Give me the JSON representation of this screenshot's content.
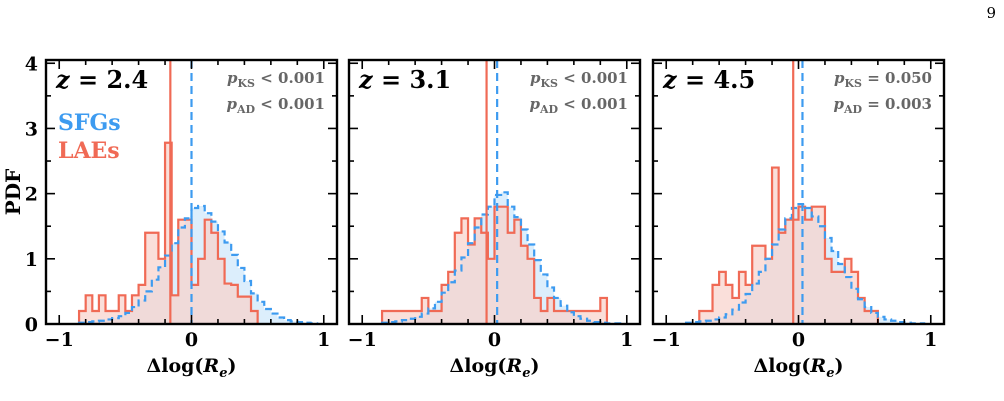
{
  "page": {
    "number": "9"
  },
  "legend": {
    "series": [
      "SFGs",
      "LAEs"
    ]
  },
  "colors": {
    "sfg": "#3d9bf0",
    "lae": "#f06a55",
    "sfg_fill": "#d6ebfb",
    "lae_fill": "#f8d1cb",
    "overlap_fill": "#e5c9d0"
  },
  "chart_data": [
    {
      "type": "histogram",
      "label": "z = 2.4",
      "label_prefix": "z",
      "label_value": "2.4",
      "ylabel": "PDF",
      "xlabel": "Δlog(R_e)",
      "xlim": [
        -1.1,
        1.1
      ],
      "ylim": [
        0,
        4.05
      ],
      "xticks": [
        "−1",
        "0",
        "1"
      ],
      "yticks": [
        "0",
        "1",
        "2",
        "3",
        "4"
      ],
      "stats": {
        "p_ks": "< 0.001",
        "p_ad": "< 0.001"
      },
      "sfg_median": 0.0,
      "lae_median": -0.16,
      "sfg_hist": {
        "edges": [
          -0.85,
          -0.8,
          -0.75,
          -0.7,
          -0.65,
          -0.6,
          -0.55,
          -0.5,
          -0.45,
          -0.4,
          -0.35,
          -0.3,
          -0.25,
          -0.2,
          -0.15,
          -0.1,
          -0.05,
          0.0,
          0.05,
          0.1,
          0.15,
          0.2,
          0.25,
          0.3,
          0.35,
          0.4,
          0.45,
          0.5,
          0.55,
          0.6,
          0.65,
          0.7,
          0.75,
          0.8,
          0.85,
          0.9,
          0.95
        ],
        "values": [
          0.02,
          0.03,
          0.04,
          0.05,
          0.07,
          0.09,
          0.12,
          0.17,
          0.26,
          0.36,
          0.5,
          0.68,
          0.87,
          1.05,
          1.24,
          1.48,
          1.62,
          1.78,
          1.81,
          1.7,
          1.57,
          1.42,
          1.25,
          1.06,
          0.86,
          0.66,
          0.47,
          0.34,
          0.23,
          0.16,
          0.1,
          0.06,
          0.04,
          0.03,
          0.02,
          0.01
        ]
      },
      "lae_hist": {
        "edges": [
          -0.85,
          -0.8,
          -0.75,
          -0.7,
          -0.65,
          -0.6,
          -0.55,
          -0.5,
          -0.45,
          -0.4,
          -0.35,
          -0.3,
          -0.25,
          -0.2,
          -0.15,
          -0.1,
          -0.05,
          0.0,
          0.05,
          0.1,
          0.15,
          0.2,
          0.25,
          0.3,
          0.35,
          0.4,
          0.45,
          0.5
        ],
        "values": [
          0.2,
          0.44,
          0.2,
          0.44,
          0.2,
          0.2,
          0.44,
          0.2,
          0.44,
          0.6,
          1.4,
          1.4,
          1.0,
          2.78,
          0.44,
          1.6,
          1.6,
          0.6,
          1.0,
          1.6,
          1.4,
          1.0,
          0.62,
          0.6,
          0.42,
          0.42,
          0.2
        ]
      }
    },
    {
      "type": "histogram",
      "label": "z = 3.1",
      "label_prefix": "z",
      "label_value": "3.1",
      "xlabel": "Δlog(R_e)",
      "xlim": [
        -1.1,
        1.1
      ],
      "ylim": [
        0,
        4.05
      ],
      "xticks": [
        "−1",
        "0",
        "1"
      ],
      "yticks": [],
      "stats": {
        "p_ks": "< 0.001",
        "p_ad": "< 0.001"
      },
      "sfg_median": 0.02,
      "lae_median": -0.06,
      "sfg_hist": {
        "edges": [
          -0.85,
          -0.8,
          -0.75,
          -0.7,
          -0.65,
          -0.6,
          -0.55,
          -0.5,
          -0.45,
          -0.4,
          -0.35,
          -0.3,
          -0.25,
          -0.2,
          -0.15,
          -0.1,
          -0.05,
          0.0,
          0.05,
          0.1,
          0.15,
          0.2,
          0.25,
          0.3,
          0.35,
          0.4,
          0.45,
          0.5,
          0.55,
          0.6,
          0.65,
          0.7,
          0.75,
          0.8,
          0.85,
          0.9,
          0.95
        ],
        "values": [
          0.02,
          0.03,
          0.04,
          0.06,
          0.08,
          0.11,
          0.16,
          0.24,
          0.34,
          0.48,
          0.64,
          0.82,
          1.02,
          1.24,
          1.48,
          1.68,
          1.8,
          1.98,
          2.02,
          1.8,
          1.64,
          1.45,
          1.22,
          0.98,
          0.76,
          0.56,
          0.4,
          0.28,
          0.18,
          0.12,
          0.08,
          0.05,
          0.03,
          0.02,
          0.01,
          0.01
        ]
      },
      "lae_hist": {
        "edges": [
          -0.85,
          -0.8,
          -0.75,
          -0.7,
          -0.65,
          -0.6,
          -0.55,
          -0.5,
          -0.45,
          -0.4,
          -0.35,
          -0.3,
          -0.25,
          -0.2,
          -0.15,
          -0.1,
          -0.05,
          0.0,
          0.05,
          0.1,
          0.15,
          0.2,
          0.25,
          0.3,
          0.35,
          0.4,
          0.45,
          0.5,
          0.55,
          0.6,
          0.65,
          0.7,
          0.75,
          0.8,
          0.85
        ],
        "values": [
          0.2,
          0.2,
          0.2,
          0.2,
          0.2,
          0.2,
          0.4,
          0.2,
          0.2,
          0.6,
          0.8,
          1.4,
          1.62,
          1.22,
          1.62,
          1.4,
          1.0,
          1.8,
          1.8,
          1.4,
          1.6,
          1.2,
          1.0,
          0.4,
          0.2,
          0.4,
          0.2,
          0.2,
          0.2,
          0.2,
          0.2,
          0.2,
          0.2,
          0.4
        ]
      }
    },
    {
      "type": "histogram",
      "label": "z = 4.5",
      "label_prefix": "z",
      "label_value": "4.5",
      "xlabel": "Δlog(R_e)",
      "xlim": [
        -1.1,
        1.1
      ],
      "ylim": [
        0,
        4.05
      ],
      "xticks": [
        "−1",
        "0",
        "1"
      ],
      "yticks": [],
      "stats": {
        "p_ks": "= 0.050",
        "p_ad": "= 0.003"
      },
      "sfg_median": 0.03,
      "lae_median": -0.04,
      "sfg_hist": {
        "edges": [
          -0.85,
          -0.8,
          -0.75,
          -0.7,
          -0.65,
          -0.6,
          -0.55,
          -0.5,
          -0.45,
          -0.4,
          -0.35,
          -0.3,
          -0.25,
          -0.2,
          -0.15,
          -0.1,
          -0.05,
          0.0,
          0.05,
          0.1,
          0.15,
          0.2,
          0.25,
          0.3,
          0.35,
          0.4,
          0.45,
          0.5,
          0.55,
          0.6,
          0.65,
          0.7,
          0.75,
          0.8,
          0.85,
          0.9,
          0.95
        ],
        "values": [
          0.02,
          0.03,
          0.04,
          0.05,
          0.07,
          0.1,
          0.15,
          0.22,
          0.33,
          0.46,
          0.62,
          0.8,
          1.0,
          1.22,
          1.45,
          1.62,
          1.78,
          1.84,
          1.78,
          1.65,
          1.5,
          1.32,
          1.12,
          0.92,
          0.72,
          0.54,
          0.38,
          0.26,
          0.17,
          0.11,
          0.07,
          0.05,
          0.03,
          0.02,
          0.01,
          0.01
        ]
      },
      "lae_hist": {
        "edges": [
          -0.75,
          -0.7,
          -0.65,
          -0.6,
          -0.55,
          -0.5,
          -0.45,
          -0.4,
          -0.35,
          -0.3,
          -0.25,
          -0.2,
          -0.15,
          -0.1,
          -0.05,
          0.0,
          0.05,
          0.1,
          0.15,
          0.2,
          0.25,
          0.3,
          0.35,
          0.4,
          0.45,
          0.5,
          0.55,
          0.6
        ],
        "values": [
          0.2,
          0.2,
          0.6,
          0.8,
          0.6,
          0.4,
          0.8,
          0.6,
          1.2,
          1.2,
          1.0,
          2.4,
          1.4,
          1.6,
          1.6,
          1.8,
          1.6,
          1.8,
          1.8,
          1.0,
          0.8,
          0.8,
          1.0,
          0.8,
          0.4,
          0.2,
          0.2
        ]
      }
    }
  ]
}
